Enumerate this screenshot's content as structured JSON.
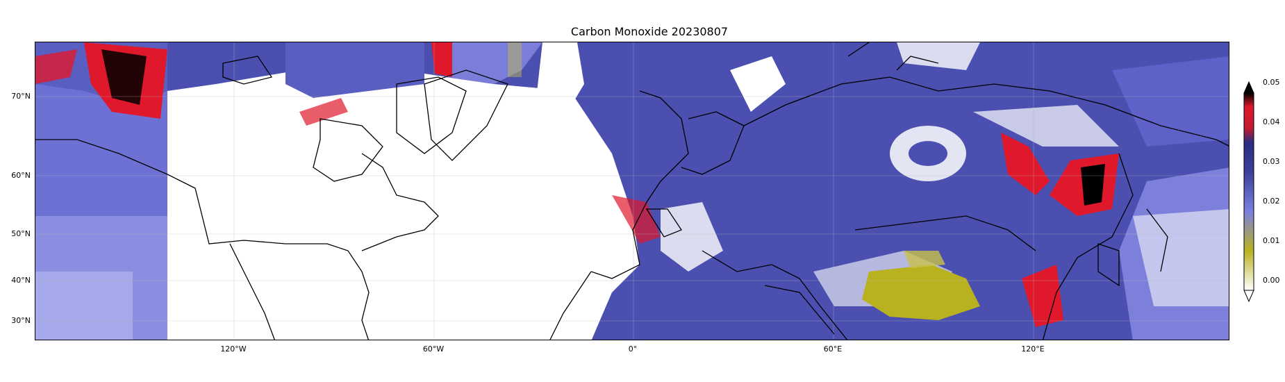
{
  "title": "Carbon Monoxide 20230807",
  "lat_labels": [
    "70°N",
    "60°N",
    "50°N",
    "40°N",
    "30°N"
  ],
  "lon_labels": [
    "120°W",
    "60°W",
    "0°",
    "60°E",
    "120°E"
  ],
  "colorbar": {
    "ticks": [
      "0.05",
      "0.04",
      "0.03",
      "0.02",
      "0.01",
      "0.00"
    ],
    "colors": [
      "#ffffff",
      "#b9b220",
      "#7b7fe0",
      "#3c3f9a",
      "#e0182c",
      "#000000"
    ]
  }
}
